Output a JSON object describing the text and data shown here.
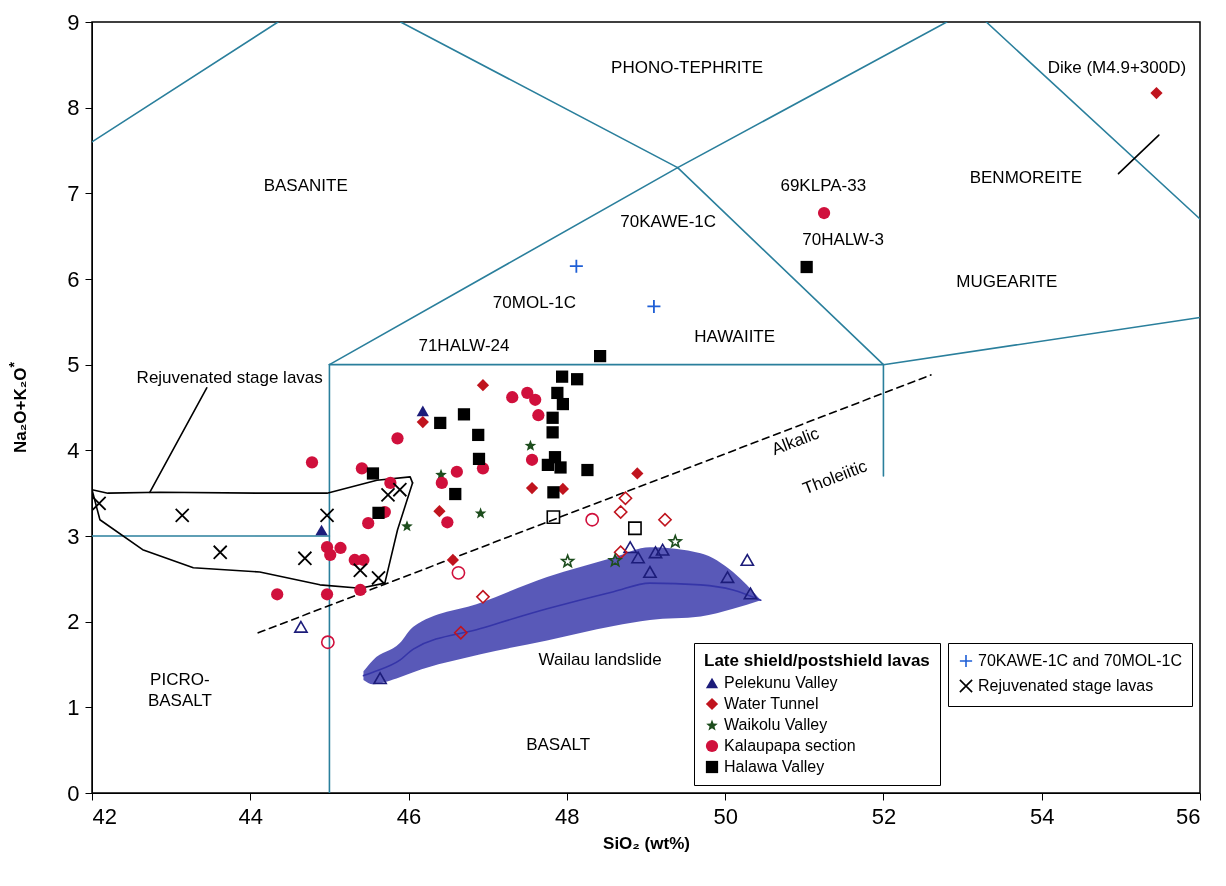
{
  "chart_data": {
    "type": "scatter",
    "xlabel": "SiO₂ (wt%)",
    "ylabel": "Na₂O+K₂O$^{*}$",
    "xlim": [
      42,
      56
    ],
    "ylim": [
      0,
      9
    ],
    "xticks": [
      42,
      44,
      46,
      48,
      50,
      52,
      54,
      56
    ],
    "yticks": [
      0,
      1,
      2,
      3,
      4,
      5,
      6,
      7,
      8,
      9
    ],
    "grid": false,
    "legend": "bottom right",
    "legend_title": "Late shield/postshield lavas",
    "series": [
      {
        "type": "line",
        "color": "#2a7f9c",
        "x": [
          42,
          44.35
        ],
        "values": [
          7.6,
          9
        ]
      },
      {
        "type": "line",
        "color": "#2a7f9c",
        "x": [
          45.9,
          49.4
        ],
        "values": [
          9,
          7.3
        ]
      },
      {
        "type": "line",
        "color": "#2a7f9c",
        "x": [
          45,
          49.4,
          52
        ],
        "values": [
          5,
          7.3,
          5
        ]
      },
      {
        "type": "line",
        "color": "#2a7f9c",
        "x": [
          49.4,
          52.8
        ],
        "values": [
          7.3,
          9
        ]
      },
      {
        "type": "line",
        "color": "#2a7f9c",
        "x": [
          53.3,
          56
        ],
        "values": [
          9,
          6.7
        ]
      },
      {
        "type": "line",
        "color": "#2a7f9c",
        "x": [
          45,
          52,
          56
        ],
        "values": [
          5,
          5,
          5.55
        ]
      },
      {
        "type": "line",
        "color": "#2a7f9c",
        "x": [
          42,
          45
        ],
        "values": [
          3,
          3
        ]
      },
      {
        "type": "line",
        "color": "#2a7f9c",
        "x": [
          45,
          45
        ],
        "values": [
          0,
          5
        ]
      },
      {
        "type": "line",
        "color": "#2a7f9c",
        "x": [
          52,
          52
        ],
        "values": [
          5,
          3.7
        ]
      },
      {
        "type": "line",
        "color": "#000000",
        "line_style": "dashed",
        "x": [
          44.1,
          52.6
        ],
        "values": [
          1.87,
          4.88
        ]
      },
      {
        "type": "line",
        "color": "#000000",
        "x": [
          54.97,
          55.48
        ],
        "values": [
          7.23,
          7.68
        ]
      },
      {
        "type": "line",
        "color": "#000000",
        "x": [
          42.73,
          43.45
        ],
        "values": [
          3.51,
          4.73
        ]
      },
      {
        "type": "line",
        "color": "#000000",
        "x": [
          42.0,
          42.2,
          42.86,
          44.12,
          44.97,
          45.6,
          46.02,
          46.05
        ],
        "values": [
          3.54,
          3.5,
          3.51,
          3.5,
          3.5,
          3.65,
          3.69,
          3.62
        ]
      },
      {
        "type": "line",
        "color": "#000000",
        "x": [
          45.7,
          45.86,
          46.05
        ],
        "values": [
          2.45,
          3.07,
          3.62
        ]
      },
      {
        "type": "line",
        "color": "#000000",
        "x": [
          42.0,
          42.1,
          42.64,
          43.28,
          44.12,
          44.88,
          45.39,
          45.7
        ],
        "values": [
          3.54,
          3.19,
          2.84,
          2.63,
          2.58,
          2.43,
          2.39,
          2.45
        ]
      },
      {
        "type": "line",
        "color": "#3535a8",
        "x": [
          45.43,
          45.55,
          45.89,
          46.06,
          46.91,
          47.75,
          48.59,
          49.05,
          49.69,
          50.1,
          50.45
        ],
        "values": [
          1.37,
          1.41,
          1.55,
          1.68,
          1.92,
          2.15,
          2.35,
          2.45,
          2.43,
          2.37,
          2.25
        ],
        "upper": [
          1.42,
          1.55,
          1.75,
          1.94,
          2.22,
          2.52,
          2.75,
          2.87,
          2.8,
          2.58,
          2.25
        ],
        "lower": [
          1.32,
          1.27,
          1.35,
          1.41,
          1.62,
          1.78,
          1.95,
          2.02,
          2.06,
          2.15,
          2.25
        ]
      },
      {
        "name": "Pelekunu Valley",
        "marker": "triangle",
        "color": "#1c1c7a",
        "x": [
          44.9,
          46.18
        ],
        "values": [
          3.07,
          4.46
        ]
      },
      {
        "marker": "triangle-open",
        "color": "#1c1c7a",
        "x": [
          44.64,
          45.64,
          48.8,
          48.9,
          49.05,
          49.12,
          49.21,
          50.28,
          50.03,
          50.32
        ],
        "values": [
          1.94,
          1.34,
          2.87,
          2.75,
          2.58,
          2.81,
          2.84,
          2.72,
          2.52,
          2.33
        ]
      },
      {
        "name": "Water Tunnel",
        "marker": "diamond",
        "color": "#c0141e",
        "x": [
          46.94,
          46.18,
          47.56,
          47.95,
          48.89,
          46.39,
          46.56,
          55.45
        ],
        "values": [
          4.76,
          4.33,
          3.56,
          3.55,
          3.73,
          3.29,
          2.72,
          8.17
        ]
      },
      {
        "marker": "diamond-open",
        "color": "#c0141e",
        "x": [
          48.74,
          48.68,
          49.24,
          46.94,
          46.66,
          48.68
        ],
        "values": [
          3.44,
          3.28,
          3.19,
          2.29,
          1.87,
          2.81
        ]
      },
      {
        "name": "Waikolu Valley",
        "marker": "star",
        "color": "#1d4d1d",
        "x": [
          47.54,
          46.41,
          46.91,
          45.98
        ],
        "values": [
          4.06,
          3.72,
          3.27,
          3.12
        ]
      },
      {
        "marker": "star-open",
        "color": "#1d4d1d",
        "x": [
          48.01,
          48.61,
          49.37
        ],
        "values": [
          2.71,
          2.72,
          2.94
        ]
      },
      {
        "name": "Kalaupapa section",
        "marker": "circle",
        "color": "#d0103c",
        "x": [
          44.78,
          45.86,
          45.41,
          45.77,
          45.7,
          45.49,
          44.97,
          45.14,
          45.01,
          45.32,
          45.43,
          45.39,
          44.97,
          44.34,
          46.61,
          46.42,
          46.94,
          46.49,
          47.31,
          47.5,
          47.6,
          47.64,
          47.56,
          51.25
        ],
        "values": [
          3.86,
          4.14,
          3.79,
          3.62,
          3.28,
          3.15,
          2.87,
          2.86,
          2.78,
          2.72,
          2.72,
          2.37,
          2.32,
          2.32,
          3.75,
          3.62,
          3.79,
          3.16,
          4.62,
          4.67,
          4.59,
          4.41,
          3.89,
          6.77
        ]
      },
      {
        "marker": "circle-open",
        "color": "#d0103c",
        "x": [
          44.98,
          46.63,
          48.32
        ],
        "values": [
          1.76,
          2.57,
          3.19
        ]
      },
      {
        "name": "Halawa Valley",
        "marker": "square",
        "color": "#000000",
        "x": [
          45.55,
          45.62,
          46.4,
          46.7,
          46.88,
          46.89,
          46.59,
          48.42,
          47.94,
          48.13,
          47.88,
          47.95,
          47.82,
          47.82,
          47.85,
          47.76,
          47.92,
          48.26,
          47.83,
          51.03
        ],
        "values": [
          3.73,
          3.27,
          4.32,
          4.42,
          4.18,
          3.9,
          3.49,
          5.1,
          4.86,
          4.83,
          4.67,
          4.54,
          4.38,
          4.21,
          3.92,
          3.83,
          3.8,
          3.77,
          3.51,
          6.14
        ]
      },
      {
        "marker": "square-open",
        "color": "#000000",
        "x": [
          47.83,
          48.86
        ],
        "values": [
          3.22,
          3.09
        ]
      },
      {
        "name": "70KAWE-1C and 70MOL-1C",
        "marker": "plus",
        "color": "#1f5fd6",
        "x": [
          48.12,
          49.1
        ],
        "values": [
          6.15,
          5.68
        ]
      },
      {
        "name": "Rejuvenated stage lavas",
        "marker": "cross",
        "color": "#000000",
        "x": [
          42.09,
          43.14,
          43.62,
          44.69,
          44.97,
          45.39,
          45.62,
          45.74,
          45.89
        ],
        "values": [
          3.38,
          3.24,
          2.81,
          2.74,
          3.24,
          2.6,
          2.51,
          3.48,
          3.54
        ]
      }
    ],
    "annotations": [
      "PHONO-TEPHRITE",
      "BASANITE",
      "BENMOREITE",
      "MUGEARITE",
      "HAWAIITE",
      "BASALT",
      "PICRO-\nBASALT",
      "Alkalic",
      "Tholeiitic",
      "Dike (M4.9+300D)",
      "69KLPA-33",
      "70HALW-3",
      "70KAWE-1C",
      "70MOL-1C",
      "71HALW-24",
      "Rejuvenated stage lavas",
      "Wailau landslide"
    ]
  }
}
